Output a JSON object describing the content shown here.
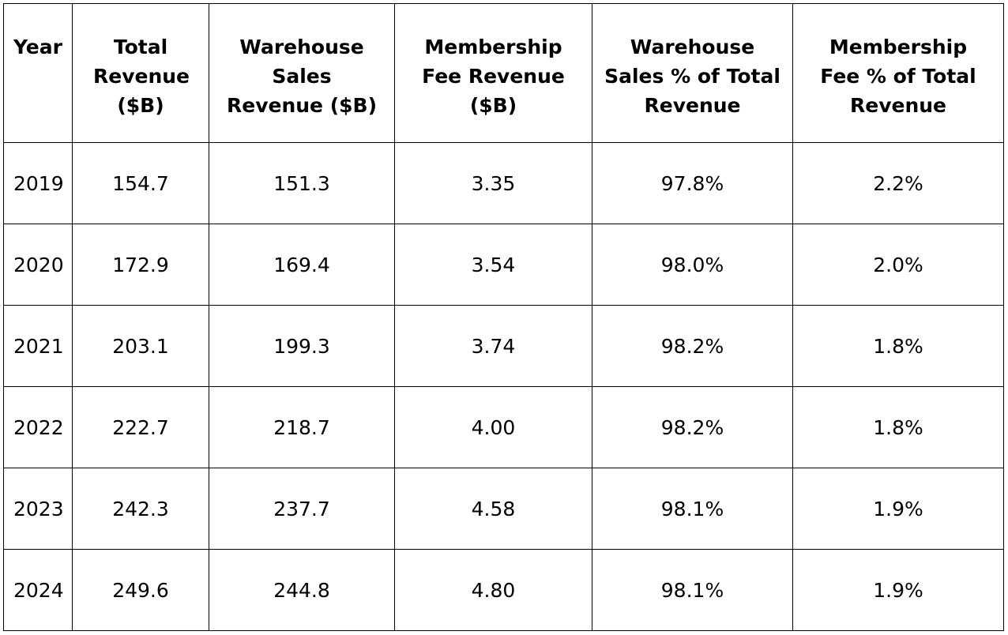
{
  "table": {
    "headers": [
      "Year",
      "Total Revenue ($B)",
      "Warehouse Sales Revenue ($B)",
      "Membership Fee Revenue ($B)",
      "Warehouse Sales % of Total Revenue",
      "Membership Fee % of Total Revenue"
    ],
    "rows": [
      [
        "2019",
        "154.7",
        "151.3",
        "3.35",
        "97.8%",
        "2.2%"
      ],
      [
        "2020",
        "172.9",
        "169.4",
        "3.54",
        "98.0%",
        "2.0%"
      ],
      [
        "2021",
        "203.1",
        "199.3",
        "3.74",
        "98.2%",
        "1.8%"
      ],
      [
        "2022",
        "222.7",
        "218.7",
        "4.00",
        "98.2%",
        "1.8%"
      ],
      [
        "2023",
        "242.3",
        "237.7",
        "4.58",
        "98.1%",
        "1.9%"
      ],
      [
        "2024",
        "249.6",
        "244.8",
        "4.80",
        "98.1%",
        "1.9%"
      ]
    ]
  }
}
